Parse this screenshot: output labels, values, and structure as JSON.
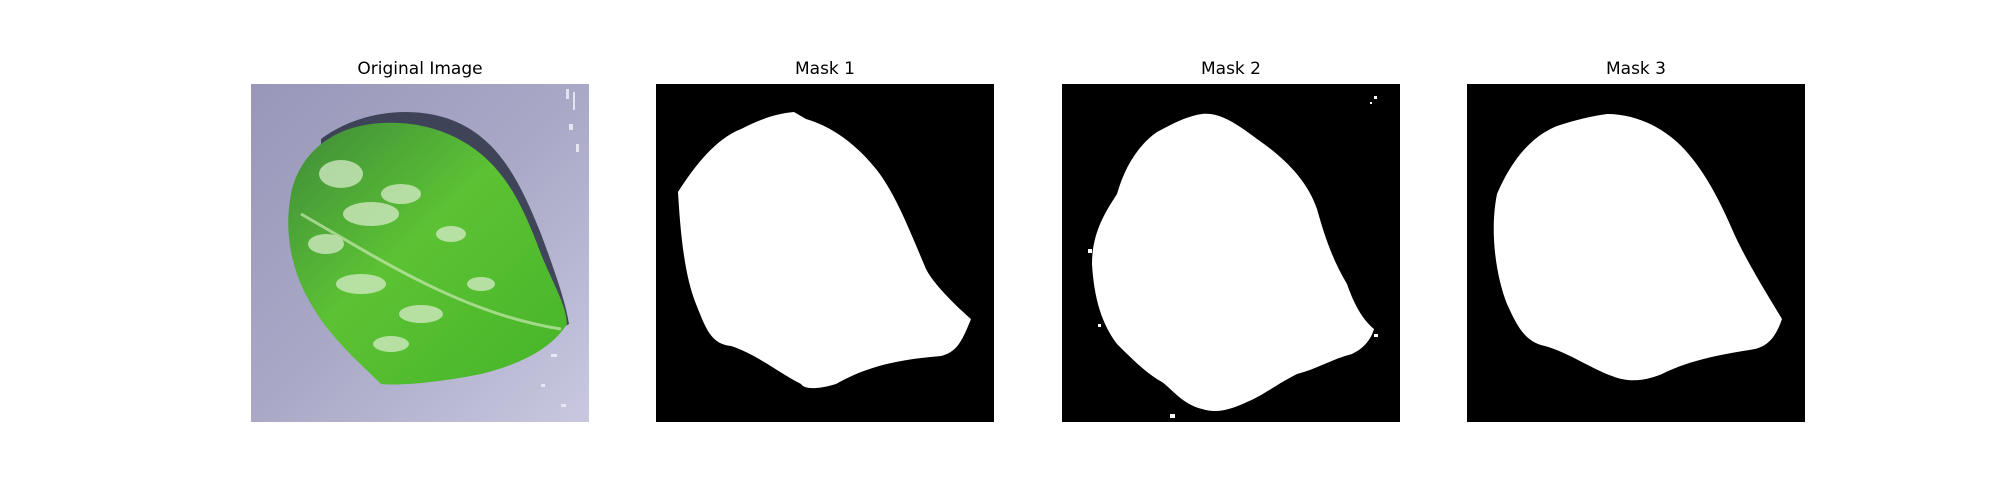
{
  "figure": {
    "panels": [
      {
        "title": "Original Image",
        "kind": "leaf-photo"
      },
      {
        "title": "Mask 1",
        "kind": "binary-mask"
      },
      {
        "title": "Mask 2",
        "kind": "binary-mask"
      },
      {
        "title": "Mask 3",
        "kind": "binary-mask"
      }
    ]
  },
  "colors": {
    "background": "#ffffff",
    "mask_foreground": "#ffffff",
    "mask_background": "#000000",
    "photo_background": "#a9a8c6",
    "leaf_green": "#4fbf2f",
    "leaf_light": "#b9e0a4",
    "leaf_shadow": "#2d3345"
  }
}
